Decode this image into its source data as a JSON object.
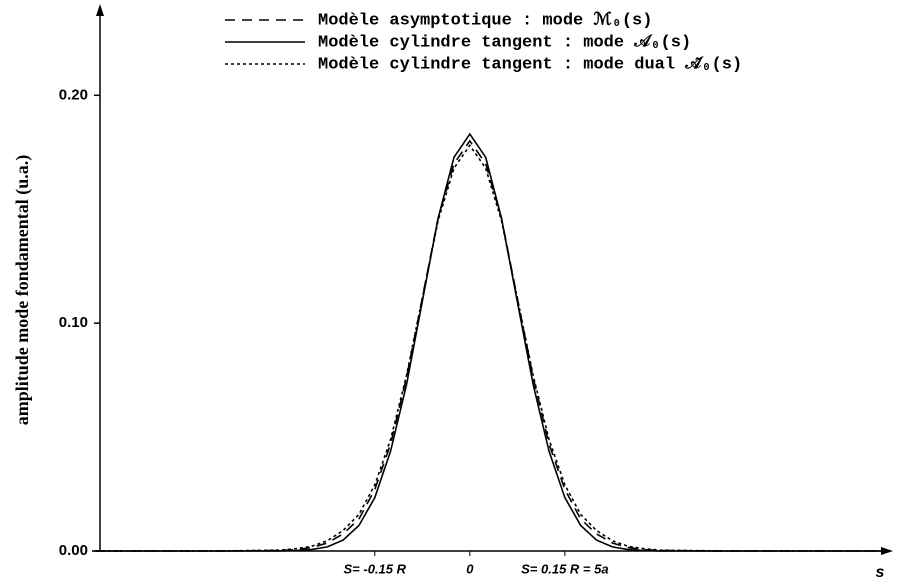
{
  "chart_data": {
    "type": "line",
    "ylabel": "amplitude mode fondamental (u.a.)",
    "xlabel": "s",
    "x": [
      -0.59,
      -0.4,
      -0.3,
      -0.275,
      -0.25,
      -0.225,
      -0.2,
      -0.175,
      -0.15,
      -0.125,
      -0.1,
      -0.075,
      -0.05,
      -0.025,
      0,
      0.025,
      0.05,
      0.075,
      0.1,
      0.125,
      0.15,
      0.175,
      0.2,
      0.225,
      0.25,
      0.275,
      0.3,
      0.4,
      0.66
    ],
    "series": [
      {
        "name": "Modèle asymptotique : mode ℳ₀(s)",
        "color": "#000000",
        "dash": "10,7",
        "values": [
          0,
          0,
          0.0002,
          0.0006,
          0.0015,
          0.0035,
          0.0075,
          0.014,
          0.027,
          0.047,
          0.076,
          0.111,
          0.146,
          0.17,
          0.18,
          0.17,
          0.146,
          0.111,
          0.076,
          0.047,
          0.027,
          0.014,
          0.0075,
          0.0035,
          0.0015,
          0.0006,
          0.0002,
          0,
          0
        ]
      },
      {
        "name": "Modèle cylindre tangent : mode 𝒜₀(s)",
        "color": "#000000",
        "dash": "none",
        "values": [
          0,
          0,
          0,
          0.0002,
          0.0006,
          0.0018,
          0.0048,
          0.0112,
          0.0234,
          0.0439,
          0.073,
          0.1095,
          0.146,
          0.1728,
          0.183,
          0.1728,
          0.146,
          0.1095,
          0.073,
          0.0439,
          0.0234,
          0.0112,
          0.0048,
          0.0018,
          0.0006,
          0.0002,
          0,
          0,
          0
        ]
      },
      {
        "name": "Modèle cylindre tangent : mode dual 𝒜̃₀(s)",
        "color": "#000000",
        "dash": "3,3",
        "values": [
          0,
          0,
          0.0004,
          0.001,
          0.002,
          0.0045,
          0.009,
          0.016,
          0.029,
          0.049,
          0.077,
          0.111,
          0.145,
          0.168,
          0.178,
          0.168,
          0.145,
          0.111,
          0.077,
          0.049,
          0.029,
          0.016,
          0.009,
          0.0045,
          0.002,
          0.001,
          0.0004,
          0,
          0
        ]
      }
    ],
    "xlim": [
      -0.59,
      0.66
    ],
    "xticks": [
      {
        "value": -0.15,
        "label": "S= -0.15 R"
      },
      0,
      {
        "value": 0.15,
        "label": "S= 0.15 R = 5a"
      }
    ],
    "ylim": [
      0,
      0.237
    ],
    "yticks": [
      {
        "value": 0,
        "label": "0.00"
      },
      {
        "value": 0.1,
        "label": "0.10"
      },
      {
        "value": 0.2,
        "label": "0.20"
      }
    ],
    "grid": false
  }
}
